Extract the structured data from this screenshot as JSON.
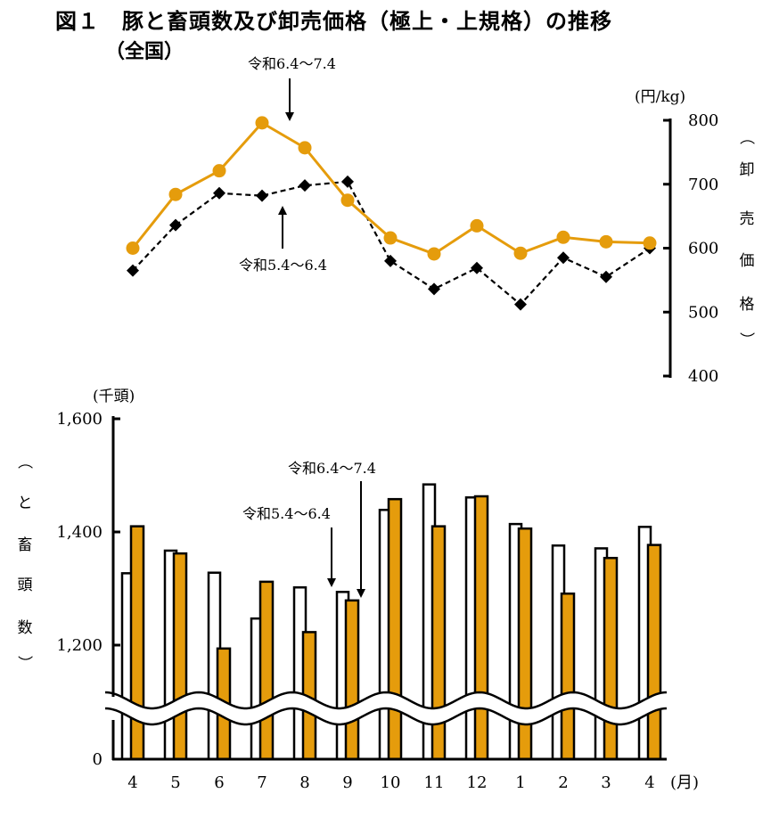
{
  "title": "図１　豚と畜頭数及び卸売価格（極上・上規格）の推移",
  "subtitle": "（全国）",
  "colors": {
    "current": "#E59C0C",
    "previous": "#000000"
  },
  "chart_data": [
    {
      "type": "line",
      "unit": "(円/kg)",
      "ylabel": [
        "（",
        "卸",
        "売",
        "価",
        "格",
        "）"
      ],
      "ylim": [
        400,
        800
      ],
      "yticks": [
        400,
        500,
        600,
        700,
        800
      ],
      "categories": [
        "4",
        "5",
        "6",
        "7",
        "8",
        "9",
        "10",
        "11",
        "12",
        "1",
        "2",
        "3",
        "4"
      ],
      "series": [
        {
          "name": "令和6.4〜7.4",
          "style": "solid-orange-circle",
          "values": [
            600,
            684,
            721,
            796,
            757,
            675,
            616,
            591,
            635,
            592,
            617,
            610,
            608
          ]
        },
        {
          "name": "令和5.4〜6.4",
          "style": "dashed-black-diamond",
          "values": [
            565,
            636,
            686,
            682,
            698,
            704,
            580,
            536,
            569,
            512,
            585,
            555,
            600
          ]
        }
      ],
      "annotations": [
        {
          "text": "令和6.4〜7.4",
          "points_to": "令和6.4〜7.4"
        },
        {
          "text": "令和5.4〜6.4",
          "points_to": "令和5.4〜6.4"
        }
      ]
    },
    {
      "type": "bar",
      "unit": "(千頭)",
      "ylabel": [
        "（",
        "と",
        "畜",
        "頭",
        "数",
        "）"
      ],
      "yticks": [
        {
          "label": "0",
          "value": 0
        },
        {
          "label": "1,200",
          "value": 1200
        },
        {
          "label": "1,400",
          "value": 1400
        },
        {
          "label": "1,600",
          "value": 1600
        }
      ],
      "axis_break": true,
      "categories": [
        "4",
        "5",
        "6",
        "7",
        "8",
        "9",
        "10",
        "11",
        "12",
        "1",
        "2",
        "3",
        "4"
      ],
      "xunit": "(月)",
      "series": [
        {
          "name": "令和5.4〜6.4",
          "style": "white-black-outline",
          "values": [
            1327,
            1367,
            1328,
            1247,
            1302,
            1294,
            1439,
            1484,
            1461,
            1414,
            1376,
            1371,
            1409
          ]
        },
        {
          "name": "令和6.4〜7.4",
          "style": "orange-black-outline",
          "values": [
            1410,
            1362,
            1194,
            1312,
            1223,
            1279,
            1458,
            1410,
            1463,
            1406,
            1291,
            1354,
            1377
          ]
        }
      ],
      "annotations": [
        {
          "text": "令和5.4〜6.4",
          "points_to": "令和5.4〜6.4"
        },
        {
          "text": "令和6.4〜7.4",
          "points_to": "令和6.4〜7.4"
        }
      ]
    }
  ]
}
